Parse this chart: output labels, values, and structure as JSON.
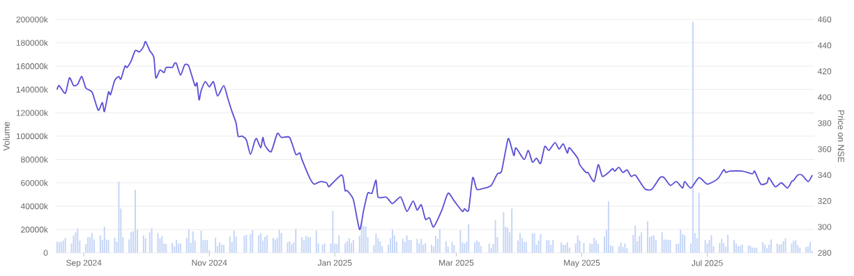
{
  "chart_data": {
    "type": "bar",
    "ylabel": "Volume",
    "y2label": "Price on NSE",
    "grid": "y",
    "xlim": [
      "2024-08-18",
      "2025-08-22"
    ],
    "xticks": [
      {
        "value": "2024-09-01",
        "label": "Sep 2024"
      },
      {
        "value": "2024-11-01",
        "label": "Nov 2024"
      },
      {
        "value": "2025-01-01",
        "label": "Jan 2025"
      },
      {
        "value": "2025-03-01",
        "label": "Mar 2025"
      },
      {
        "value": "2025-05-01",
        "label": "May 2025"
      },
      {
        "value": "2025-07-01",
        "label": "Jul 2025"
      }
    ],
    "ylim": [
      0,
      200000
    ],
    "yticks": [
      0,
      {
        "value": 20000,
        "label": "20000k"
      },
      {
        "value": 40000,
        "label": "40000k"
      },
      {
        "value": 60000,
        "label": "60000k"
      },
      {
        "value": 80000,
        "label": "80000k"
      },
      {
        "value": 100000,
        "label": "100000k"
      },
      {
        "value": 120000,
        "label": "120000k"
      },
      {
        "value": 140000,
        "label": "140000k"
      },
      {
        "value": 160000,
        "label": "160000k"
      },
      {
        "value": 180000,
        "label": "180000k"
      },
      {
        "value": 200000,
        "label": "200000k"
      }
    ],
    "y2lim": [
      280,
      460
    ],
    "y2ticks": [
      280,
      300,
      320,
      340,
      360,
      380,
      400,
      420,
      440,
      460
    ],
    "x": [
      "2024-08-19",
      "2024-08-20",
      "2024-08-21",
      "2024-08-22",
      "2024-08-23",
      "2024-08-26",
      "2024-08-27",
      "2024-08-28",
      "2024-08-29",
      "2024-08-30",
      "2024-09-02",
      "2024-09-03",
      "2024-09-04",
      "2024-09-05",
      "2024-09-06",
      "2024-09-09",
      "2024-09-10",
      "2024-09-11",
      "2024-09-12",
      "2024-09-13",
      "2024-09-16",
      "2024-09-17",
      "2024-09-18",
      "2024-09-19",
      "2024-09-20",
      "2024-09-23",
      "2024-09-24",
      "2024-09-25",
      "2024-09-26",
      "2024-09-27",
      "2024-09-30",
      "2024-10-01",
      "2024-10-03",
      "2024-10-04",
      "2024-10-07",
      "2024-10-08",
      "2024-10-09",
      "2024-10-10",
      "2024-10-11",
      "2024-10-14",
      "2024-10-15",
      "2024-10-16",
      "2024-10-17",
      "2024-10-18",
      "2024-10-21",
      "2024-10-22",
      "2024-10-23",
      "2024-10-24",
      "2024-10-25",
      "2024-10-28",
      "2024-10-29",
      "2024-10-30",
      "2024-10-31",
      "2024-11-01",
      "2024-11-04",
      "2024-11-05",
      "2024-11-06",
      "2024-11-07",
      "2024-11-08",
      "2024-11-11",
      "2024-11-12",
      "2024-11-13",
      "2024-11-14",
      "2024-11-18",
      "2024-11-19",
      "2024-11-21",
      "2024-11-22",
      "2024-11-25",
      "2024-11-26",
      "2024-11-27",
      "2024-11-28",
      "2024-11-29",
      "2024-12-02",
      "2024-12-03",
      "2024-12-04",
      "2024-12-05",
      "2024-12-06",
      "2024-12-09",
      "2024-12-10",
      "2024-12-11",
      "2024-12-12",
      "2024-12-13",
      "2024-12-16",
      "2024-12-17",
      "2024-12-18",
      "2024-12-19",
      "2024-12-20",
      "2024-12-23",
      "2024-12-24",
      "2024-12-26",
      "2024-12-27",
      "2024-12-30",
      "2024-12-31",
      "2025-01-01",
      "2025-01-02",
      "2025-01-03",
      "2025-01-06",
      "2025-01-07",
      "2025-01-08",
      "2025-01-09",
      "2025-01-10",
      "2025-01-13",
      "2025-01-14",
      "2025-01-15",
      "2025-01-16",
      "2025-01-17",
      "2025-01-20",
      "2025-01-21",
      "2025-01-22",
      "2025-01-23",
      "2025-01-24",
      "2025-01-27",
      "2025-01-28",
      "2025-01-29",
      "2025-01-30",
      "2025-01-31",
      "2025-02-03",
      "2025-02-04",
      "2025-02-05",
      "2025-02-06",
      "2025-02-07",
      "2025-02-10",
      "2025-02-11",
      "2025-02-12",
      "2025-02-13",
      "2025-02-14",
      "2025-02-17",
      "2025-02-18",
      "2025-02-19",
      "2025-02-20",
      "2025-02-21",
      "2025-02-24",
      "2025-02-25",
      "2025-02-27",
      "2025-02-28",
      "2025-03-03",
      "2025-03-04",
      "2025-03-05",
      "2025-03-06",
      "2025-03-07",
      "2025-03-10",
      "2025-03-11",
      "2025-03-12",
      "2025-03-13",
      "2025-03-17",
      "2025-03-18",
      "2025-03-19",
      "2025-03-20",
      "2025-03-21",
      "2025-03-24",
      "2025-03-25",
      "2025-03-26",
      "2025-03-27",
      "2025-03-28",
      "2025-03-31",
      "2025-04-01",
      "2025-04-02",
      "2025-04-03",
      "2025-04-04",
      "2025-04-07",
      "2025-04-08",
      "2025-04-09",
      "2025-04-10",
      "2025-04-11",
      "2025-04-14",
      "2025-04-15",
      "2025-04-16",
      "2025-04-17",
      "2025-04-21",
      "2025-04-22",
      "2025-04-23",
      "2025-04-24",
      "2025-04-25",
      "2025-04-28",
      "2025-04-29",
      "2025-04-30",
      "2025-05-02",
      "2025-05-05",
      "2025-05-06",
      "2025-05-07",
      "2025-05-08",
      "2025-05-09",
      "2025-05-12",
      "2025-05-13",
      "2025-05-14",
      "2025-05-15",
      "2025-05-16",
      "2025-05-19",
      "2025-05-20",
      "2025-05-21",
      "2025-05-22",
      "2025-05-23",
      "2025-05-26",
      "2025-05-27",
      "2025-05-28",
      "2025-05-29",
      "2025-05-30",
      "2025-06-02",
      "2025-06-03",
      "2025-06-04",
      "2025-06-05",
      "2025-06-06",
      "2025-06-09",
      "2025-06-10",
      "2025-06-11",
      "2025-06-12",
      "2025-06-13",
      "2025-06-16",
      "2025-06-17",
      "2025-06-18",
      "2025-06-19",
      "2025-06-20",
      "2025-06-23",
      "2025-06-24",
      "2025-06-25",
      "2025-06-26",
      "2025-06-27",
      "2025-06-30",
      "2025-07-01",
      "2025-07-02",
      "2025-07-03",
      "2025-07-04",
      "2025-07-07",
      "2025-07-08",
      "2025-07-09",
      "2025-07-10",
      "2025-07-11",
      "2025-07-14",
      "2025-07-15",
      "2025-07-16",
      "2025-07-17",
      "2025-07-18",
      "2025-07-21",
      "2025-07-22",
      "2025-07-23",
      "2025-07-24",
      "2025-07-25",
      "2025-07-28",
      "2025-07-29",
      "2025-07-30",
      "2025-07-31",
      "2025-08-01",
      "2025-08-04",
      "2025-08-05",
      "2025-08-06",
      "2025-08-07",
      "2025-08-08",
      "2025-08-11",
      "2025-08-12",
      "2025-08-13",
      "2025-08-14",
      "2025-08-15",
      "2025-08-18",
      "2025-08-19",
      "2025-08-20",
      "2025-08-21"
    ],
    "series": [
      {
        "color": "#c5d6f7",
        "values": [
          9500,
          9000,
          9500,
          10500,
          13000,
          8000,
          15000,
          17500,
          21000,
          10500,
          7500,
          13500,
          13500,
          17000,
          11500,
          15000,
          11000,
          22500,
          11500,
          11000,
          13000,
          9500,
          61000,
          38000,
          13500,
          11500,
          18000,
          18500,
          54000,
          20000,
          15000,
          12500,
          17500,
          21000,
          17000,
          12500,
          14500,
          8000,
          7500,
          8500,
          5500,
          11000,
          8000,
          8000,
          13000,
          20000,
          8500,
          18500,
          10500,
          19000,
          11000,
          11000,
          11000,
          2000,
          13000,
          6000,
          9000,
          7000,
          7000,
          14000,
          9500,
          19000,
          14000,
          14500,
          15500,
          16000,
          19500,
          15000,
          17000,
          10500,
          13500,
          15000,
          13000,
          11500,
          13000,
          20000,
          17000,
          9000,
          10000,
          7500,
          9000,
          20500,
          13500,
          11000,
          14500,
          13500,
          13500,
          19000,
          8000,
          7000,
          8000,
          8000,
          36000,
          8000,
          7500,
          15000,
          8000,
          10000,
          12500,
          8500,
          11000,
          14500,
          27000,
          23000,
          22500,
          13500,
          6500,
          16500,
          12500,
          10000,
          6000,
          7000,
          12500,
          20000,
          15000,
          9500,
          12000,
          9500,
          15000,
          11000,
          11000,
          12000,
          8000,
          12000,
          7000,
          8500,
          7000,
          5500,
          14500,
          12000,
          20500,
          10000,
          5500,
          9500,
          6500,
          19500,
          9000,
          8000,
          9500,
          24500,
          9000,
          10500,
          9500,
          6000,
          8000,
          4000,
          7500,
          28000,
          13500,
          35000,
          22500,
          21500,
          17500,
          38000,
          10500,
          17000,
          12500,
          9500,
          9500,
          17000,
          16500,
          7000,
          10500,
          16000,
          11000,
          11000,
          7000,
          11000,
          9000,
          7000,
          7000,
          9000,
          4500,
          8000,
          15000,
          10500,
          8500,
          8000,
          7500,
          13000,
          10500,
          7500,
          14000,
          20000,
          44000,
          6500,
          6000,
          5500,
          9000,
          5000,
          8000,
          4000,
          15500,
          23500,
          10000,
          14500,
          17500,
          27000,
          13500,
          14500,
          15000,
          11000,
          18000,
          11500,
          11500,
          11000,
          11000,
          7500,
          8000,
          20000,
          16000,
          15000,
          8000,
          198000,
          17000,
          12500,
          51500,
          11000,
          8000,
          11000,
          15000,
          5500,
          8500,
          12000,
          8500,
          5500,
          15500,
          11000,
          8000,
          6000,
          6000,
          7000,
          6500,
          6000,
          4500,
          4500,
          4500,
          9000,
          7000,
          4000,
          7000,
          11500,
          8000,
          7000,
          7500,
          10000,
          12500,
          8000,
          10500,
          10500,
          6500,
          4500,
          5000,
          5500,
          9500,
          1500
        ]
      },
      {
        "type": "line",
        "axis": "y2",
        "color": "#5b50d6",
        "x": [
          "2024-08-19",
          "2024-08-20",
          "2024-08-23",
          "2024-08-25",
          "2024-08-27",
          "2024-08-29",
          "2024-08-31",
          "2024-09-02",
          "2024-09-05",
          "2024-09-08",
          "2024-09-10",
          "2024-09-11",
          "2024-09-13",
          "2024-09-14",
          "2024-09-16",
          "2024-09-18",
          "2024-09-19",
          "2024-09-21",
          "2024-09-22",
          "2024-09-24",
          "2024-09-26",
          "2024-09-28",
          "2024-09-30",
          "2024-10-01",
          "2024-10-03",
          "2024-10-05",
          "2024-10-06",
          "2024-10-08",
          "2024-10-10",
          "2024-10-11",
          "2024-10-14",
          "2024-10-15",
          "2024-10-16",
          "2024-10-18",
          "2024-10-20",
          "2024-10-22",
          "2024-10-25",
          "2024-10-26",
          "2024-10-27",
          "2024-10-28",
          "2024-10-30",
          "2024-11-01",
          "2024-11-03",
          "2024-11-05",
          "2024-11-08",
          "2024-11-10",
          "2024-11-12",
          "2024-11-14",
          "2024-11-15",
          "2024-11-17",
          "2024-11-19",
          "2024-11-21",
          "2024-11-23",
          "2024-11-24",
          "2024-11-26",
          "2024-11-27",
          "2024-11-28",
          "2024-12-01",
          "2024-12-04",
          "2024-12-06",
          "2024-12-10",
          "2024-12-13",
          "2024-12-15",
          "2024-12-16",
          "2024-12-20",
          "2024-12-22",
          "2024-12-25",
          "2024-12-28",
          "2024-12-29",
          "2024-12-31",
          "2025-01-04",
          "2025-01-05",
          "2025-01-06",
          "2025-01-07",
          "2025-01-10",
          "2025-01-13",
          "2025-01-15",
          "2025-01-17",
          "2025-01-19",
          "2025-01-21",
          "2025-01-22",
          "2025-01-26",
          "2025-01-29",
          "2025-02-02",
          "2025-02-05",
          "2025-02-08",
          "2025-02-10",
          "2025-02-12",
          "2025-02-14",
          "2025-02-16",
          "2025-02-18",
          "2025-02-22",
          "2025-02-25",
          "2025-02-28",
          "2025-03-04",
          "2025-03-05",
          "2025-03-07",
          "2025-03-09",
          "2025-03-11",
          "2025-03-15",
          "2025-03-18",
          "2025-03-21",
          "2025-03-23",
          "2025-03-26",
          "2025-03-27",
          "2025-03-29",
          "2025-03-30",
          "2025-04-03",
          "2025-04-05",
          "2025-04-07",
          "2025-04-09",
          "2025-04-11",
          "2025-04-13",
          "2025-04-15",
          "2025-04-18",
          "2025-04-20",
          "2025-04-22",
          "2025-04-24",
          "2025-04-25",
          "2025-04-29",
          "2025-04-30",
          "2025-05-03",
          "2025-05-04",
          "2025-05-07",
          "2025-05-09",
          "2025-05-11",
          "2025-05-14",
          "2025-05-16",
          "2025-05-17",
          "2025-05-19",
          "2025-05-21",
          "2025-05-23",
          "2025-05-25",
          "2025-05-27",
          "2025-05-30",
          "2025-06-01",
          "2025-06-04",
          "2025-06-08",
          "2025-06-10",
          "2025-06-13",
          "2025-06-16",
          "2025-06-19",
          "2025-06-20",
          "2025-06-23",
          "2025-06-27",
          "2025-07-01",
          "2025-07-06",
          "2025-07-09",
          "2025-07-10",
          "2025-07-12",
          "2025-07-18",
          "2025-07-23",
          "2025-07-24",
          "2025-07-27",
          "2025-07-30",
          "2025-07-31",
          "2025-08-03",
          "2025-08-06",
          "2025-08-09",
          "2025-08-11",
          "2025-08-12",
          "2025-08-14",
          "2025-08-16",
          "2025-08-19",
          "2025-08-21"
        ],
        "values": [
          406,
          409,
          403,
          415,
          409,
          410,
          416,
          407,
          404,
          390,
          396,
          389,
          404,
          402,
          413,
          416,
          414,
          424,
          423,
          428,
          436,
          435,
          439,
          443,
          436,
          431,
          415,
          421,
          419,
          423,
          423,
          426,
          426,
          417,
          425,
          424,
          409,
          411,
          398,
          405,
          412,
          408,
          412,
          401,
          409,
          399,
          389,
          380,
          370,
          370,
          367,
          356,
          366,
          368,
          361,
          369,
          363,
          358,
          372,
          369,
          369,
          356,
          357,
          352,
          337,
          333,
          335,
          334,
          331,
          334,
          340,
          338,
          328,
          328,
          321,
          298,
          313,
          326,
          326,
          336,
          323,
          323,
          318,
          323,
          312,
          320,
          313,
          317,
          306,
          307,
          300,
          313,
          326,
          320,
          312,
          314,
          313,
          338,
          329,
          330,
          332,
          341,
          343,
          367,
          366,
          355,
          361,
          352,
          359,
          350,
          353,
          349,
          362,
          359,
          365,
          360,
          364,
          357,
          361,
          353,
          348,
          342,
          342,
          335,
          348,
          339,
          342,
          345,
          343,
          346,
          342,
          344,
          339,
          340,
          333,
          329,
          329,
          338,
          338,
          332,
          335,
          330,
          335,
          330,
          338,
          333,
          337,
          344,
          342,
          343,
          343,
          341,
          343,
          333,
          334,
          338,
          331,
          334,
          330,
          335,
          336,
          340,
          340,
          335,
          340
        ]
      }
    ]
  }
}
